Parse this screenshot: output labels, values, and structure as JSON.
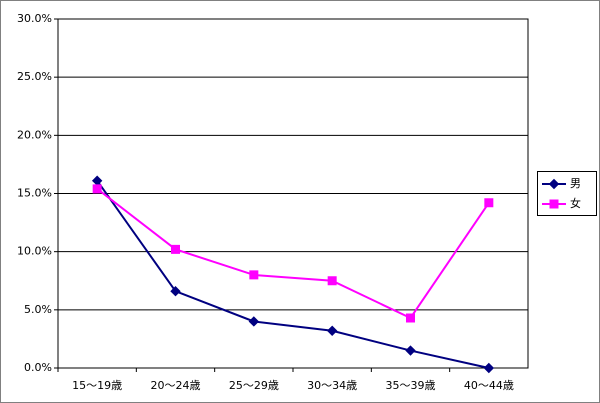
{
  "chart_data": {
    "type": "line",
    "categories": [
      "15〜19歳",
      "20〜24歳",
      "25〜29歳",
      "30〜34歳",
      "35〜39歳",
      "40〜44歳"
    ],
    "series": [
      {
        "name": "男",
        "color": "#000080",
        "marker": "diamond",
        "values": [
          16.1,
          6.6,
          4.0,
          3.2,
          1.5,
          0.0
        ]
      },
      {
        "name": "女",
        "color": "#ff00ff",
        "marker": "square",
        "values": [
          15.4,
          10.2,
          8.0,
          7.5,
          4.3,
          14.2
        ]
      }
    ],
    "ylim": [
      0,
      30
    ],
    "yticks": [
      {
        "value": 0,
        "label": "0.0%"
      },
      {
        "value": 5,
        "label": "5.0%"
      },
      {
        "value": 10,
        "label": "10.0%"
      },
      {
        "value": 15,
        "label": "15.0%"
      },
      {
        "value": 20,
        "label": "20.0%"
      },
      {
        "value": 25,
        "label": "25.0%"
      },
      {
        "value": 30,
        "label": "30.0%"
      }
    ],
    "grid": true,
    "legend": "right"
  }
}
